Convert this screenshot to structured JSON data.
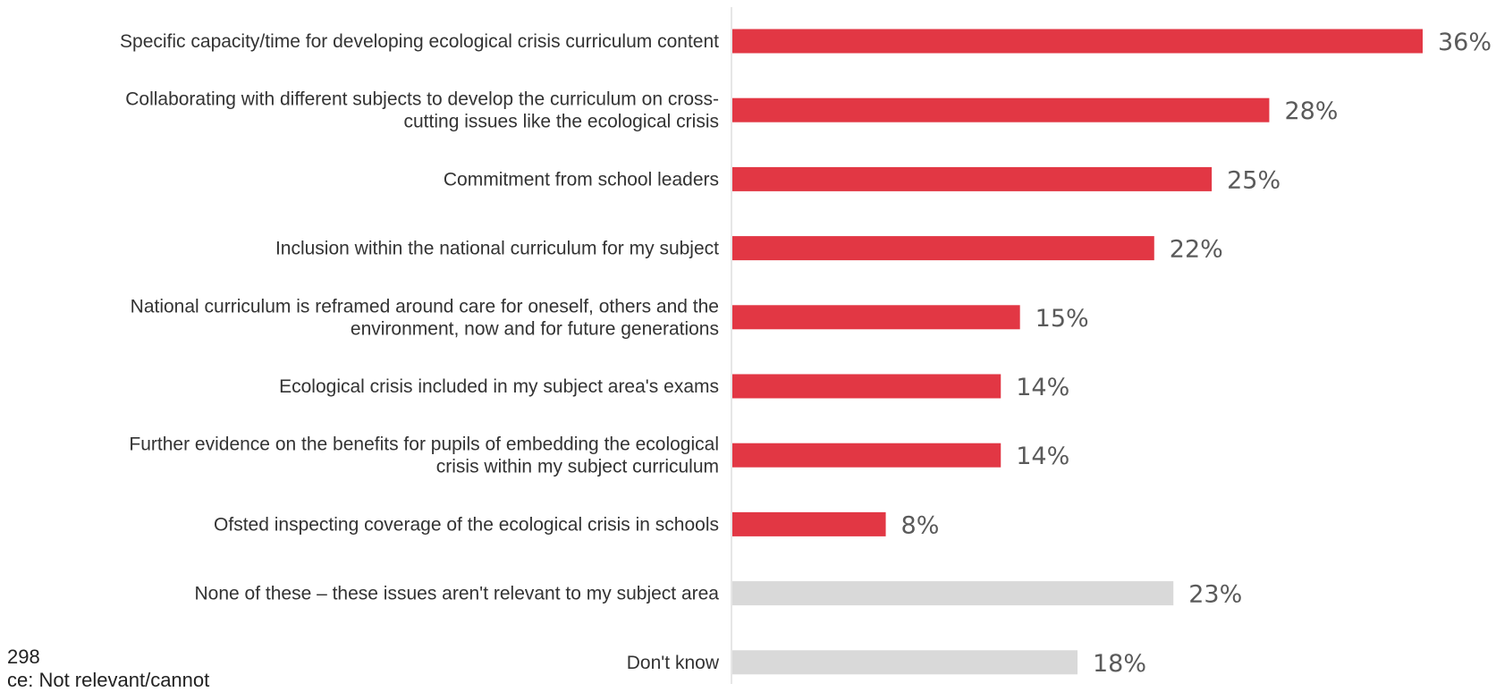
{
  "chart_data": {
    "type": "bar",
    "orientation": "horizontal",
    "title": "",
    "xlabel": "",
    "ylabel": "",
    "xlim": [
      0,
      36
    ],
    "grid": false,
    "legend": "none",
    "value_suffix": "%",
    "categories": [
      [
        "Specific capacity/time for developing ecological crisis curriculum content"
      ],
      [
        "Collaborating with different subjects to develop the curriculum on cross-",
        "cutting issues like the ecological crisis"
      ],
      [
        "Commitment from school leaders"
      ],
      [
        "Inclusion within the national curriculum for my subject"
      ],
      [
        "National curriculum is reframed around care for oneself, others and the",
        "environment, now and for future generations"
      ],
      [
        "Ecological crisis included in my subject area's exams"
      ],
      [
        "Further evidence on the benefits for pupils of embedding the ecological",
        "crisis within my subject curriculum"
      ],
      [
        "Ofsted inspecting coverage of the ecological crisis in schools"
      ],
      [
        "None of these – these issues aren't relevant to my subject area"
      ],
      [
        "Don't know"
      ]
    ],
    "values": [
      36,
      28,
      25,
      22,
      15,
      14,
      14,
      8,
      23,
      18
    ],
    "value_labels": [
      "36%",
      "28%",
      "25%",
      "22%",
      "15%",
      "14%",
      "14%",
      "8%",
      "23%",
      "18%"
    ],
    "bar_groups": [
      "support",
      "support",
      "support",
      "support",
      "support",
      "support",
      "support",
      "support",
      "other",
      "other"
    ]
  },
  "colors": {
    "support": "#e23744",
    "other": "#d9d9d9",
    "axis": "#cccccc"
  },
  "footnote": {
    "line1": "298",
    "line2": "ce: Not relevant/cannot"
  }
}
